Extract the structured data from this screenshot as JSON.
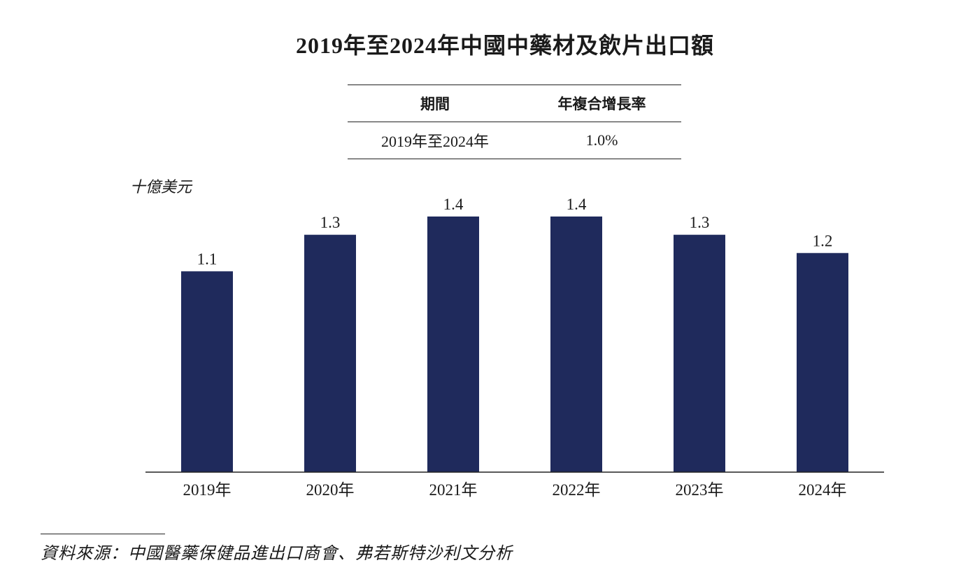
{
  "title": "2019年至2024年中國中藥材及飲片出口額",
  "cagr_table": {
    "headers": [
      "期間",
      "年複合增長率"
    ],
    "rows": [
      [
        "2019年至2024年",
        "1.0%"
      ]
    ]
  },
  "chart_data": {
    "type": "bar",
    "title": "2019年至2024年中國中藥材及飲片出口額",
    "ylabel": "十億美元",
    "categories": [
      "2019年",
      "2020年",
      "2021年",
      "2022年",
      "2023年",
      "2024年"
    ],
    "values": [
      1.1,
      1.3,
      1.4,
      1.4,
      1.3,
      1.2
    ],
    "data_labels": [
      "1.1",
      "1.3",
      "1.4",
      "1.4",
      "1.3",
      "1.2"
    ],
    "ylim": [
      0,
      1.4
    ],
    "grid": false,
    "legend": "none",
    "bar_color": "#1f2a5c"
  },
  "source": "資料來源：中國醫藥保健品進出口商會、弗若斯特沙利文分析"
}
